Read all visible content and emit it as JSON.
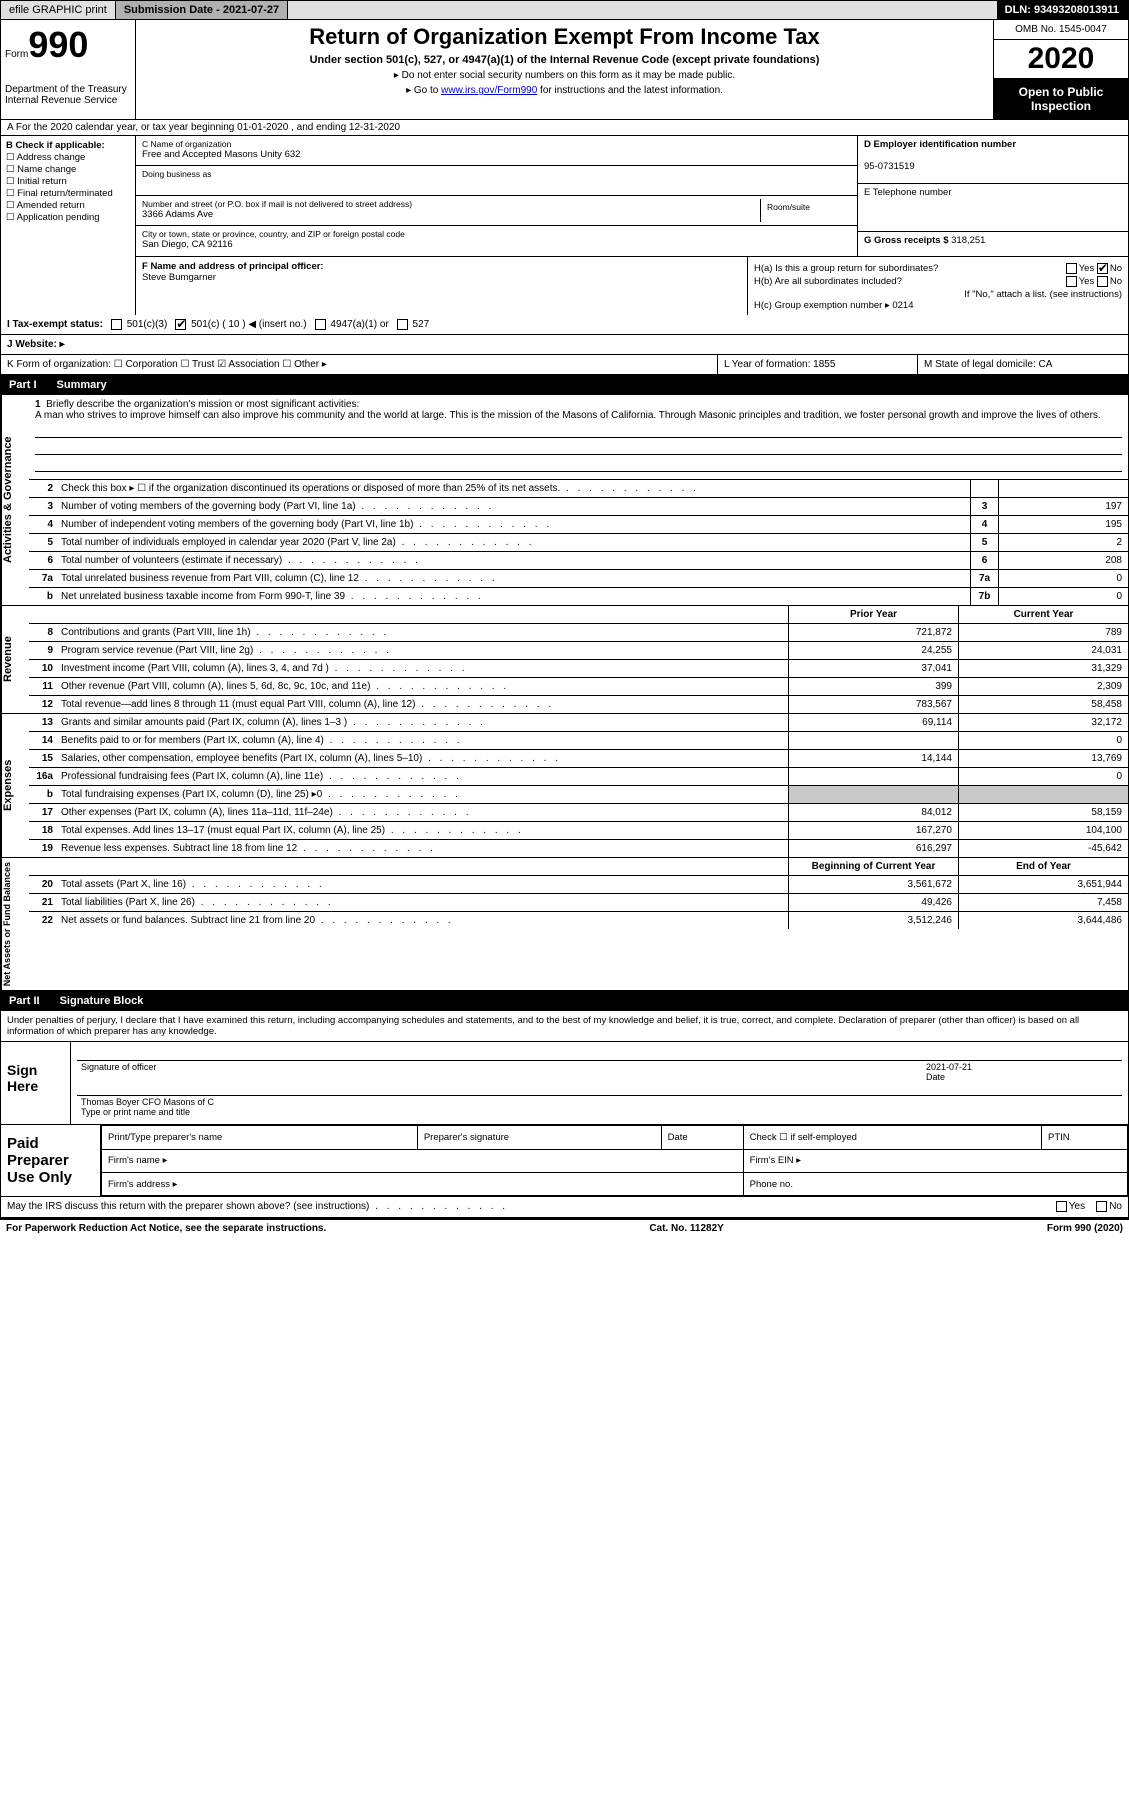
{
  "topbar": {
    "efile": "efile GRAPHIC print",
    "submission_label": "Submission Date - 2021-07-27",
    "dln": "DLN: 93493208013911"
  },
  "header": {
    "form_word": "Form",
    "form_num": "990",
    "dept": "Department of the Treasury\nInternal Revenue Service",
    "title": "Return of Organization Exempt From Income Tax",
    "sub1": "Under section 501(c), 527, or 4947(a)(1) of the Internal Revenue Code (except private foundations)",
    "sub2a": "▸ Do not enter social security numbers on this form as it may be made public.",
    "sub2b_pre": "▸ Go to ",
    "sub2b_link": "www.irs.gov/Form990",
    "sub2b_post": " for instructions and the latest information.",
    "omb": "OMB No. 1545-0047",
    "year": "2020",
    "open": "Open to Public Inspection"
  },
  "row_a": "A  For the 2020 calendar year, or tax year beginning 01-01-2020   , and ending 12-31-2020",
  "b": {
    "title": "B Check if applicable:",
    "opts": [
      "☐ Address change",
      "☐ Name change",
      "☐ Initial return",
      "☐ Final return/terminated",
      "☐ Amended return",
      "☐ Application pending"
    ]
  },
  "c": {
    "name_lbl": "C Name of organization",
    "name": "Free and Accepted Masons Unity 632",
    "dba_lbl": "Doing business as",
    "dba": "",
    "addr_lbl": "Number and street (or P.O. box if mail is not delivered to street address)",
    "addr": "3366 Adams Ave",
    "room_lbl": "Room/suite",
    "city_lbl": "City or town, state or province, country, and ZIP or foreign postal code",
    "city": "San Diego, CA  92116"
  },
  "d": {
    "lbl": "D Employer identification number",
    "val": "95-0731519"
  },
  "e": {
    "lbl": "E Telephone number",
    "val": ""
  },
  "g": {
    "lbl": "G Gross receipts $ ",
    "val": "318,251"
  },
  "f": {
    "lbl": "F  Name and address of principal officer:",
    "val": "Steve Bumgarner"
  },
  "h": {
    "a": "H(a)  Is this a group return for subordinates?",
    "a_yes": "Yes",
    "a_no": "No",
    "b": "H(b)  Are all subordinates included?",
    "b_note": "If \"No,\" attach a list. (see instructions)",
    "c": "H(c)  Group exemption number ▸   0214"
  },
  "i": {
    "lbl": "I  Tax-exempt status:",
    "opt1": "501(c)(3)",
    "opt2": "501(c) ( 10 ) ◀ (insert no.)",
    "opt3": "4947(a)(1) or",
    "opt4": "527"
  },
  "j": {
    "lbl": "J  Website: ▸"
  },
  "klm": {
    "k": "K Form of organization:   ☐ Corporation  ☐ Trust  ☑ Association  ☐ Other ▸",
    "l": "L Year of formation: 1855",
    "m": "M State of legal domicile: CA"
  },
  "part1_hdr": {
    "num": "Part I",
    "title": "Summary"
  },
  "mission": {
    "num": "1",
    "lbl": "Briefly describe the organization's mission or most significant activities:",
    "text": "A man who strives to improve himself can also improve his community and the world at large. This is the mission of the Masons of California. Through Masonic principles and tradition, we foster personal growth and improve the lives of others."
  },
  "vlabels": {
    "gov": "Activities & Governance",
    "rev": "Revenue",
    "exp": "Expenses",
    "net": "Net Assets or Fund Balances"
  },
  "gov_lines": [
    {
      "n": "2",
      "d": "Check this box ▸ ☐  if the organization discontinued its operations or disposed of more than 25% of its net assets.",
      "b": "",
      "v": ""
    },
    {
      "n": "3",
      "d": "Number of voting members of the governing body (Part VI, line 1a)",
      "b": "3",
      "v": "197"
    },
    {
      "n": "4",
      "d": "Number of independent voting members of the governing body (Part VI, line 1b)",
      "b": "4",
      "v": "195"
    },
    {
      "n": "5",
      "d": "Total number of individuals employed in calendar year 2020 (Part V, line 2a)",
      "b": "5",
      "v": "2"
    },
    {
      "n": "6",
      "d": "Total number of volunteers (estimate if necessary)",
      "b": "6",
      "v": "208"
    },
    {
      "n": "7a",
      "d": "Total unrelated business revenue from Part VIII, column (C), line 12",
      "b": "7a",
      "v": "0"
    },
    {
      "n": "b",
      "d": "Net unrelated business taxable income from Form 990-T, line 39",
      "b": "7b",
      "v": "0"
    }
  ],
  "col_hdrs": {
    "py": "Prior Year",
    "cy": "Current Year"
  },
  "rev_lines": [
    {
      "n": "8",
      "d": "Contributions and grants (Part VIII, line 1h)",
      "py": "721,872",
      "cy": "789"
    },
    {
      "n": "9",
      "d": "Program service revenue (Part VIII, line 2g)",
      "py": "24,255",
      "cy": "24,031"
    },
    {
      "n": "10",
      "d": "Investment income (Part VIII, column (A), lines 3, 4, and 7d )",
      "py": "37,041",
      "cy": "31,329"
    },
    {
      "n": "11",
      "d": "Other revenue (Part VIII, column (A), lines 5, 6d, 8c, 9c, 10c, and 11e)",
      "py": "399",
      "cy": "2,309"
    },
    {
      "n": "12",
      "d": "Total revenue—add lines 8 through 11 (must equal Part VIII, column (A), line 12)",
      "py": "783,567",
      "cy": "58,458"
    }
  ],
  "exp_lines": [
    {
      "n": "13",
      "d": "Grants and similar amounts paid (Part IX, column (A), lines 1–3 )",
      "py": "69,114",
      "cy": "32,172"
    },
    {
      "n": "14",
      "d": "Benefits paid to or for members (Part IX, column (A), line 4)",
      "py": "",
      "cy": "0"
    },
    {
      "n": "15",
      "d": "Salaries, other compensation, employee benefits (Part IX, column (A), lines 5–10)",
      "py": "14,144",
      "cy": "13,769"
    },
    {
      "n": "16a",
      "d": "Professional fundraising fees (Part IX, column (A), line 11e)",
      "py": "",
      "cy": "0"
    },
    {
      "n": "b",
      "d": "Total fundraising expenses (Part IX, column (D), line 25) ▸0",
      "py": "SHADE",
      "cy": "SHADE"
    },
    {
      "n": "17",
      "d": "Other expenses (Part IX, column (A), lines 11a–11d, 11f–24e)",
      "py": "84,012",
      "cy": "58,159"
    },
    {
      "n": "18",
      "d": "Total expenses. Add lines 13–17 (must equal Part IX, column (A), line 25)",
      "py": "167,270",
      "cy": "104,100"
    },
    {
      "n": "19",
      "d": "Revenue less expenses. Subtract line 18 from line 12",
      "py": "616,297",
      "cy": "-45,642"
    }
  ],
  "net_hdrs": {
    "b": "Beginning of Current Year",
    "e": "End of Year"
  },
  "net_lines": [
    {
      "n": "20",
      "d": "Total assets (Part X, line 16)",
      "py": "3,561,672",
      "cy": "3,651,944"
    },
    {
      "n": "21",
      "d": "Total liabilities (Part X, line 26)",
      "py": "49,426",
      "cy": "7,458"
    },
    {
      "n": "22",
      "d": "Net assets or fund balances. Subtract line 21 from line 20",
      "py": "3,512,246",
      "cy": "3,644,486"
    }
  ],
  "part2_hdr": {
    "num": "Part II",
    "title": "Signature Block"
  },
  "sig_text": "Under penalties of perjury, I declare that I have examined this return, including accompanying schedules and statements, and to the best of my knowledge and belief, it is true, correct, and complete. Declaration of preparer (other than officer) is based on all information of which preparer has any knowledge.",
  "sign": {
    "lbl": "Sign Here",
    "sig_lbl": "Signature of officer",
    "date_lbl": "Date",
    "date": "2021-07-21",
    "name": "Thomas Boyer CFO Masons of C",
    "name_lbl": "Type or print name and title"
  },
  "prep": {
    "lbl": "Paid Preparer Use Only",
    "c1": "Print/Type preparer's name",
    "c2": "Preparer's signature",
    "c3": "Date",
    "c4": "Check ☐ if self-employed",
    "c5": "PTIN",
    "r2a": "Firm's name  ▸",
    "r2b": "Firm's EIN ▸",
    "r3a": "Firm's address ▸",
    "r3b": "Phone no."
  },
  "discuss": {
    "q": "May the IRS discuss this return with the preparer shown above? (see instructions)",
    "yes": "Yes",
    "no": "No"
  },
  "footer": {
    "l": "For Paperwork Reduction Act Notice, see the separate instructions.",
    "c": "Cat. No. 11282Y",
    "r": "Form 990 (2020)"
  }
}
